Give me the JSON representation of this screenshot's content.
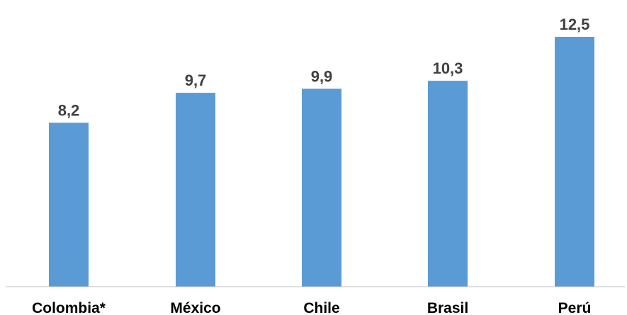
{
  "chart_data": {
    "type": "bar",
    "categories": [
      "Colombia*",
      "México",
      "Chile",
      "Brasil",
      "Perú"
    ],
    "values": [
      8.2,
      9.7,
      9.9,
      10.3,
      12.5
    ],
    "value_labels": [
      "8,2",
      "9,7",
      "9,9",
      "10,3",
      "12,5"
    ],
    "title": "",
    "xlabel": "",
    "ylabel": "",
    "ylim": [
      0,
      12.5
    ],
    "grid": false,
    "legend": "none",
    "bar_color": "#5B9BD5",
    "axis_color": "#BFBFBF",
    "label_color": "#404040"
  }
}
